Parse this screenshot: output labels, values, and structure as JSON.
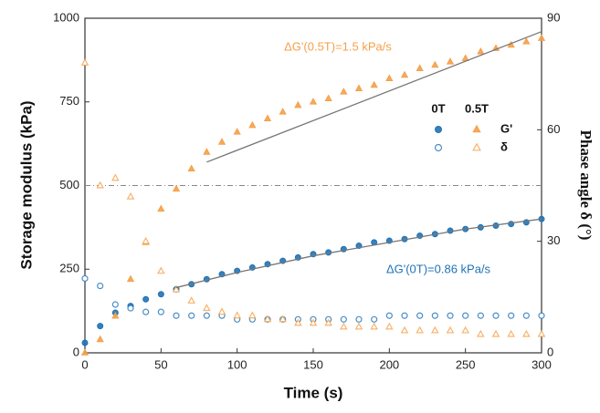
{
  "chart_data": {
    "type": "scatter",
    "xlabel": "Time (s)",
    "ylabel": "Storage modulus (kPa)",
    "y2label": "Phase angle δ (°)",
    "x": [
      0,
      10,
      20,
      30,
      40,
      50,
      60,
      70,
      80,
      90,
      100,
      110,
      120,
      130,
      140,
      150,
      160,
      170,
      180,
      190,
      200,
      210,
      220,
      230,
      240,
      250,
      260,
      270,
      280,
      290,
      300
    ],
    "xlim": [
      0,
      300
    ],
    "xticks": [
      0,
      50,
      100,
      150,
      200,
      250,
      300
    ],
    "ylim": [
      0,
      1000
    ],
    "yticks": [
      0,
      250,
      500,
      750,
      1000
    ],
    "y2lim": [
      0,
      90
    ],
    "y2ticks": [
      0,
      30,
      60,
      90
    ],
    "legend": {
      "columns": [
        "0T",
        "0.5T"
      ],
      "rows": [
        "G'",
        "δ"
      ]
    },
    "series": [
      {
        "color": "#1f73b7",
        "marker": "circle",
        "fill": "solid",
        "axis": "y",
        "values": [
          30,
          80,
          120,
          140,
          160,
          175,
          190,
          205,
          220,
          235,
          245,
          255,
          265,
          275,
          285,
          295,
          300,
          310,
          320,
          330,
          335,
          340,
          350,
          355,
          365,
          370,
          375,
          380,
          385,
          390,
          400
        ]
      },
      {
        "color": "#f5a04a",
        "marker": "triangle",
        "fill": "solid",
        "axis": "y",
        "values": [
          0,
          40,
          110,
          220,
          330,
          430,
          490,
          550,
          600,
          630,
          660,
          680,
          700,
          720,
          740,
          750,
          760,
          780,
          790,
          800,
          820,
          830,
          850,
          860,
          870,
          880,
          900,
          910,
          920,
          930,
          940
        ]
      },
      {
        "color": "#1f73b7",
        "marker": "circle",
        "fill": "open",
        "axis": "y2",
        "values": [
          20,
          18,
          13,
          12,
          11,
          11,
          10,
          10,
          10,
          10,
          9,
          9,
          9,
          9,
          9,
          9,
          9,
          9,
          9,
          9,
          10,
          10,
          10,
          10,
          10,
          10,
          10,
          10,
          10,
          10,
          10
        ]
      },
      {
        "color": "#f5a04a",
        "marker": "triangle",
        "fill": "open",
        "axis": "y2",
        "values": [
          78,
          45,
          47,
          42,
          30,
          22,
          17,
          14,
          12,
          11,
          10,
          10,
          9,
          9,
          8,
          8,
          8,
          7,
          7,
          7,
          7,
          6,
          6,
          6,
          6,
          6,
          5,
          5,
          5,
          5,
          5
        ]
      }
    ],
    "fit_lines": [
      {
        "color": "#777777",
        "x": [
          60,
          100,
          150,
          200,
          250,
          300
        ],
        "y": [
          195,
          240,
          290,
          330,
          370,
          400
        ]
      },
      {
        "color": "#777777",
        "x": [
          80,
          300
        ],
        "y": [
          570,
          960
        ]
      }
    ],
    "hline": {
      "value": 500,
      "color": "#888888"
    },
    "annotations": [
      {
        "text": "ΔG'(0.5T)=1.5 kPa/s",
        "color": "#f5a04a"
      },
      {
        "text": "ΔG'(0T)=0.86 kPa/s",
        "color": "#1f73b7"
      }
    ]
  }
}
